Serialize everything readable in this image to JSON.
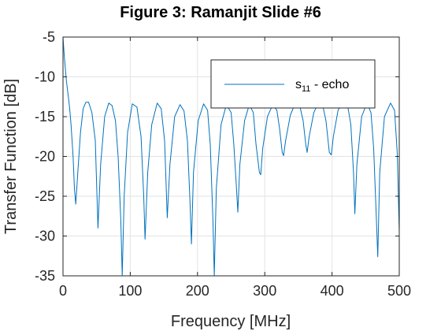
{
  "chart_data": {
    "type": "line",
    "title": "Figure 3: Ramanjit Slide #6",
    "xlabel": "Frequency [MHz]",
    "ylabel": "Transfer Function [dB]",
    "xlim": [
      0,
      500
    ],
    "ylim": [
      -35,
      -5
    ],
    "xticks": [
      "0",
      "100",
      "200",
      "300",
      "400",
      "500"
    ],
    "yticks": [
      "-5",
      "-10",
      "-15",
      "-20",
      "-25",
      "-30",
      "-35"
    ],
    "grid": true,
    "legend_position": "top-right",
    "line_color": "#0072bd",
    "series": [
      {
        "name": "s11 - echo",
        "legend_main": "s",
        "legend_sub": "11",
        "legend_rest": " - echo",
        "x": [
          0,
          2,
          5,
          8,
          10,
          12,
          15,
          17,
          19,
          22,
          26,
          30,
          34,
          38,
          43,
          48,
          52,
          56,
          62,
          68,
          73,
          78,
          82,
          86,
          88,
          91,
          96,
          103,
          110,
          116,
          120,
          122,
          126,
          132,
          140,
          146,
          151,
          155,
          159,
          166,
          174,
          180,
          185,
          189,
          191,
          194,
          201,
          209,
          215,
          219,
          223,
          225,
          228,
          235,
          243,
          250,
          254,
          258,
          260,
          263,
          270,
          277,
          283,
          287,
          292,
          294,
          297,
          304,
          312,
          318,
          322,
          326,
          328,
          331,
          338,
          346,
          352,
          357,
          361,
          363,
          366,
          373,
          380,
          386,
          391,
          396,
          399,
          402,
          409,
          417,
          423,
          428,
          432,
          434,
          437,
          444,
          452,
          458,
          462,
          466,
          468,
          471,
          478,
          487,
          493,
          497,
          500
        ],
        "y": [
          -5,
          -7.5,
          -10.5,
          -12.5,
          -14,
          -16,
          -20,
          -24,
          -26,
          -22,
          -17,
          -14,
          -13.2,
          -13.2,
          -14.5,
          -18,
          -29,
          -21,
          -15,
          -13.3,
          -13.6,
          -15.5,
          -20,
          -28,
          -35,
          -25,
          -17,
          -13.4,
          -13.8,
          -17.5,
          -25,
          -30.4,
          -22,
          -16,
          -13.3,
          -14,
          -18,
          -27.7,
          -21,
          -15,
          -13.5,
          -14.3,
          -18,
          -26,
          -31,
          -22,
          -15.5,
          -13.4,
          -14.2,
          -18.5,
          -28,
          -35,
          -24,
          -16,
          -13.5,
          -14.5,
          -18.5,
          -24,
          -27,
          -21,
          -15.5,
          -13.5,
          -14.5,
          -18.5,
          -22,
          -22.3,
          -19,
          -15,
          -13.5,
          -14.2,
          -16.5,
          -19.5,
          -19.9,
          -18,
          -14.8,
          -13.2,
          -13.6,
          -15.5,
          -18.5,
          -19.5,
          -17.5,
          -14.5,
          -13.2,
          -13.5,
          -15.5,
          -19.5,
          -19.8,
          -17.5,
          -14.2,
          -13,
          -13.5,
          -16,
          -22,
          -27.2,
          -21,
          -15,
          -13.3,
          -14.5,
          -19,
          -28,
          -32.6,
          -22,
          -15,
          -13.3,
          -14.2,
          -19.5,
          -29.5
        ]
      }
    ]
  }
}
